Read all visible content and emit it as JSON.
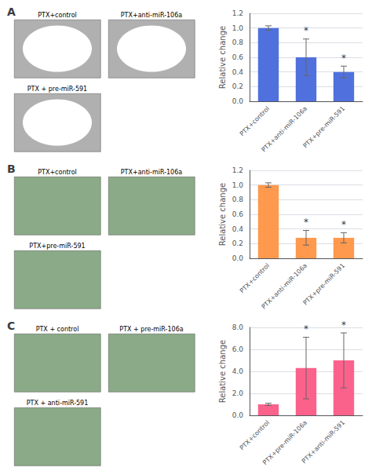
{
  "chart_data": [
    {
      "type": "bar",
      "title": "A",
      "categories": [
        "PTX+control",
        "PTX+anti-miR-106a",
        "PTX+pre-miR-591"
      ],
      "values": [
        1.0,
        0.6,
        0.4
      ],
      "errors": [
        0.03,
        0.25,
        0.08
      ],
      "ylabel": "Relative change",
      "ylim": [
        0,
        1.2
      ],
      "yticks": [
        {
          "value": 0.0,
          "label": "0.0"
        },
        0.2,
        0.4,
        0.6,
        0.8,
        {
          "value": 1.0,
          "label": "1.0"
        },
        1.2
      ],
      "annotations": [
        {
          "text": "*",
          "category": "PTX+anti-miR-106a"
        },
        {
          "text": "*",
          "category": "PTX+pre-miR-591"
        },
        {
          "text": "PTX+control"
        },
        {
          "text": "PTX+anti-miR-106a"
        },
        {
          "text": "PTX + pre-miR-591"
        }
      ]
    },
    {
      "type": "bar",
      "title": "B",
      "categories": [
        "PTX+control",
        "PTX+anti-miR-106a",
        "PTX+pre-miR-591"
      ],
      "values": [
        1.0,
        0.28,
        0.28
      ],
      "errors": [
        0.03,
        0.1,
        0.07
      ],
      "ylabel": "Relative change",
      "ylim": [
        0,
        1.2
      ],
      "yticks": [
        {
          "value": 0.0,
          "label": "0.0"
        },
        0.2,
        0.4,
        0.6,
        0.8,
        {
          "value": 1.0,
          "label": "1.0"
        },
        1.2
      ],
      "annotations": [
        {
          "text": "*",
          "category": "PTX+anti-miR-106a"
        },
        {
          "text": "*",
          "category": "PTX+pre-miR-591"
        },
        {
          "text": "PTX+control"
        },
        {
          "text": "PTX+anti-miR-106a"
        },
        {
          "text": "PTX+pre-miR-591"
        }
      ]
    },
    {
      "type": "bar",
      "title": "C",
      "categories": [
        "PTX+control",
        "PTX+pre-miR-106a",
        "PTX+anti-miR-591"
      ],
      "values": [
        1.0,
        4.3,
        5.0
      ],
      "errors": [
        0.1,
        2.8,
        2.5
      ],
      "ylabel": "Relative change",
      "ylim": [
        0,
        8.0
      ],
      "yticks": [
        {
          "value": 0.0,
          "label": "0.0"
        },
        {
          "value": 2.0,
          "label": "2.0"
        },
        {
          "value": 4.0,
          "label": "4.0"
        },
        {
          "value": 6.0,
          "label": "6.0"
        },
        {
          "value": 8.0,
          "label": "8.0"
        }
      ],
      "annotations": [
        {
          "text": "*",
          "category": "PTX+pre-miR-106a"
        },
        {
          "text": "*",
          "category": "PTX+anti-miR-591"
        },
        {
          "text": "PTX + control"
        },
        {
          "text": "PTX + pre-miR-106a"
        },
        {
          "text": "PTX + anti-miR-591"
        }
      ]
    }
  ]
}
